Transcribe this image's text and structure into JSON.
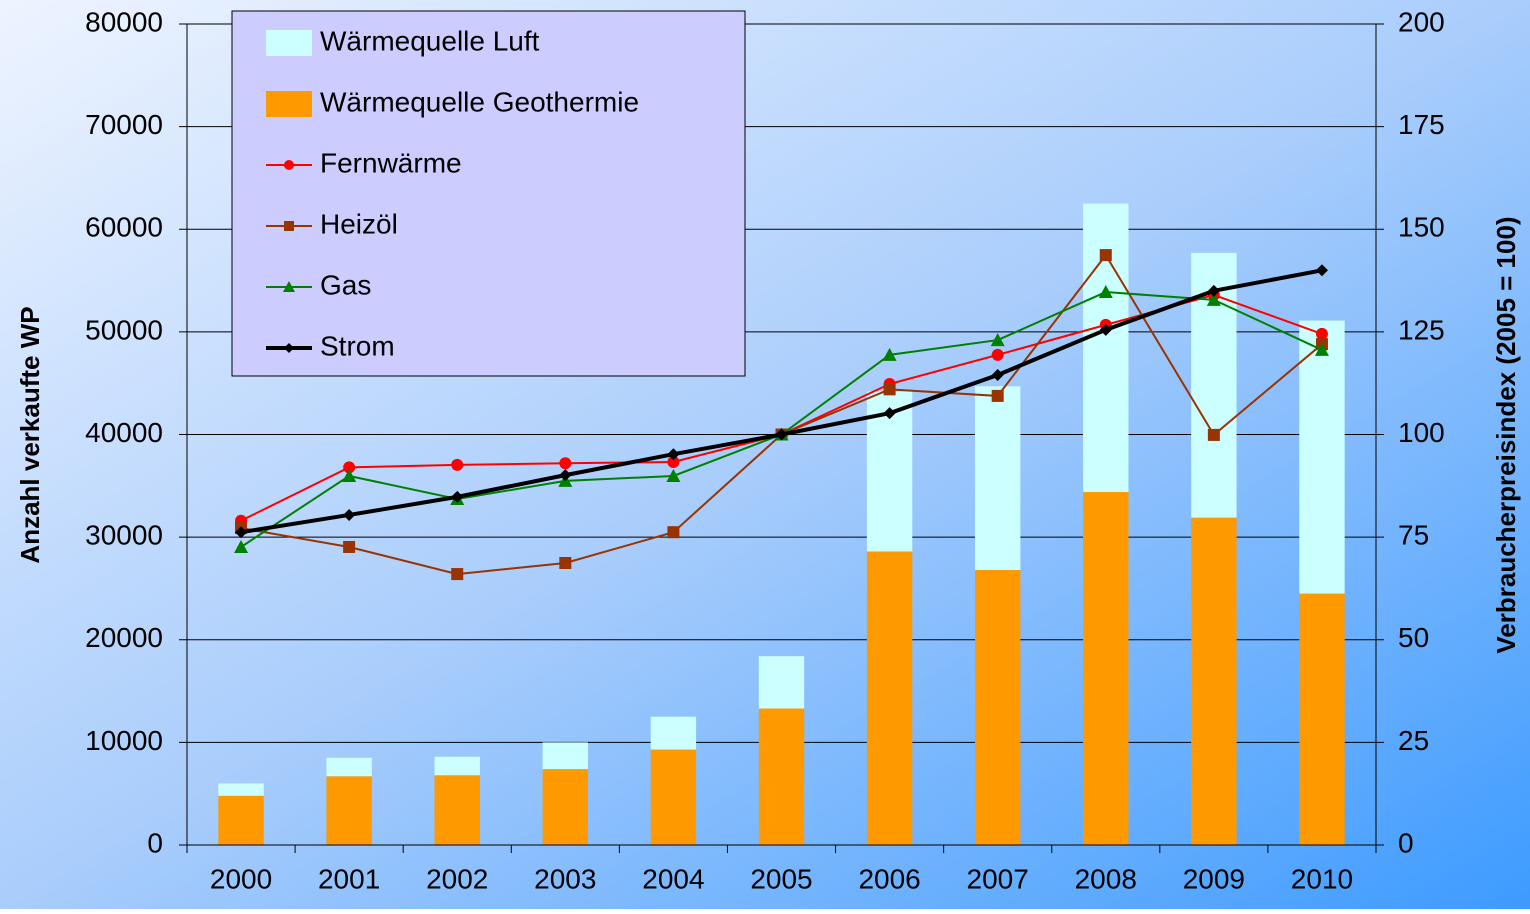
{
  "chart_data": {
    "type": "bar",
    "categories": [
      "2000",
      "2001",
      "2002",
      "2003",
      "2004",
      "2005",
      "2006",
      "2007",
      "2008",
      "2009",
      "2010"
    ],
    "series": [
      {
        "name": "Wärmequelle Luft",
        "type": "bar",
        "color": "#ccffff",
        "values": [
          1200,
          1800,
          1800,
          2600,
          3200,
          5100,
          15600,
          17900,
          28100,
          25800,
          26600
        ]
      },
      {
        "name": "Wärmequelle Geothermie",
        "type": "bar",
        "color": "#ff9900",
        "values": [
          4800,
          6700,
          6800,
          7400,
          9300,
          13300,
          28600,
          26800,
          34400,
          31900,
          24500
        ]
      },
      {
        "name": "Fernwärme",
        "type": "line",
        "axis": "y2",
        "marker": "circle",
        "color": "#ff0000",
        "values": [
          79,
          92,
          92.6,
          93,
          93.3,
          100,
          112.3,
          119.4,
          126.7,
          134,
          124.5
        ]
      },
      {
        "name": "Heizöl",
        "type": "line",
        "axis": "y2",
        "marker": "square",
        "color": "#993300",
        "values": [
          77.2,
          72.6,
          66,
          68.7,
          76.2,
          100,
          111,
          109.4,
          143.7,
          99.9,
          122
        ]
      },
      {
        "name": "Gas",
        "type": "line",
        "axis": "y2",
        "marker": "triangle",
        "color": "#008000",
        "values": [
          72.6,
          89.9,
          84.3,
          88.7,
          89.9,
          100,
          119.4,
          123,
          134.7,
          132.8,
          120.6
        ]
      },
      {
        "name": "Strom",
        "type": "line",
        "axis": "y2",
        "marker": "diamond",
        "color": "#000000",
        "values": [
          76.2,
          80.4,
          84.8,
          90.1,
          95.2,
          100,
          105.2,
          114.5,
          125.5,
          135,
          140
        ]
      }
    ],
    "y_label": "Anzahl verkaufte WP",
    "y2_label": "Verbraucherpreisindex (2005 = 100)",
    "ylim": [
      0,
      80000
    ],
    "yticks": [
      0,
      10000,
      20000,
      30000,
      40000,
      50000,
      60000,
      70000,
      80000
    ],
    "y2lim": [
      0,
      200
    ],
    "y2ticks": [
      0,
      25,
      50,
      75,
      100,
      125,
      150,
      175,
      200
    ],
    "grid": true,
    "legend": "top-left"
  }
}
